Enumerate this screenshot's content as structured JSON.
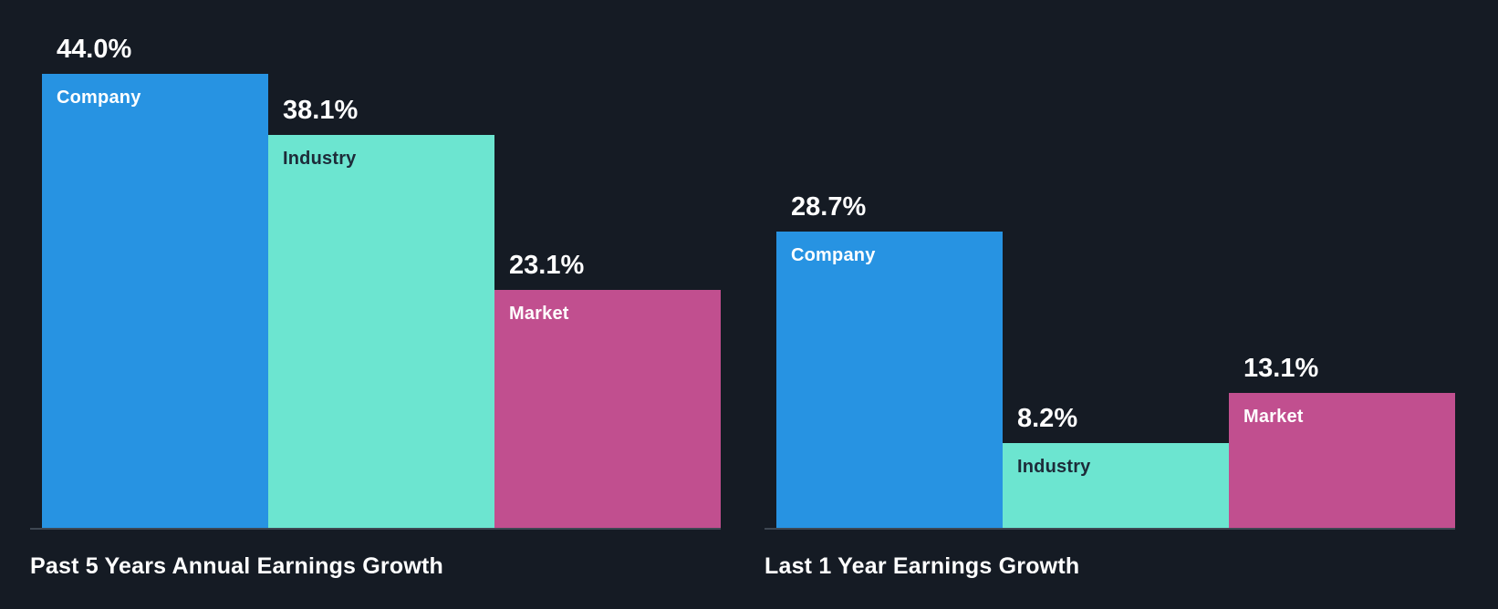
{
  "style": {
    "background": "#151B24",
    "axis_color": "#3E4752",
    "title_color": "#FFFFFF",
    "value_label_color": "#FFFFFF",
    "series_colors": [
      "#2793E2",
      "#6CE5D0",
      "#C14F8F"
    ],
    "bar_label_colors": [
      "#FFFFFF",
      "#1D2B39",
      "#FFFFFF"
    ]
  },
  "chart_data": [
    {
      "type": "bar",
      "title": "Past 5 Years Annual Earnings Growth",
      "categories": [
        "Company",
        "Industry",
        "Market"
      ],
      "values": [
        44.0,
        38.1,
        23.1
      ],
      "value_labels": [
        "44.0%",
        "38.1%",
        "23.1%"
      ],
      "ylim": [
        0,
        44
      ],
      "grid": false,
      "legend": "category-labels-inside-bars"
    },
    {
      "type": "bar",
      "title": "Last 1 Year Earnings Growth",
      "categories": [
        "Company",
        "Industry",
        "Market"
      ],
      "values": [
        28.7,
        8.2,
        13.1
      ],
      "value_labels": [
        "28.7%",
        "8.2%",
        "13.1%"
      ],
      "ylim": [
        0,
        44
      ],
      "grid": false,
      "legend": "category-labels-inside-bars"
    }
  ]
}
